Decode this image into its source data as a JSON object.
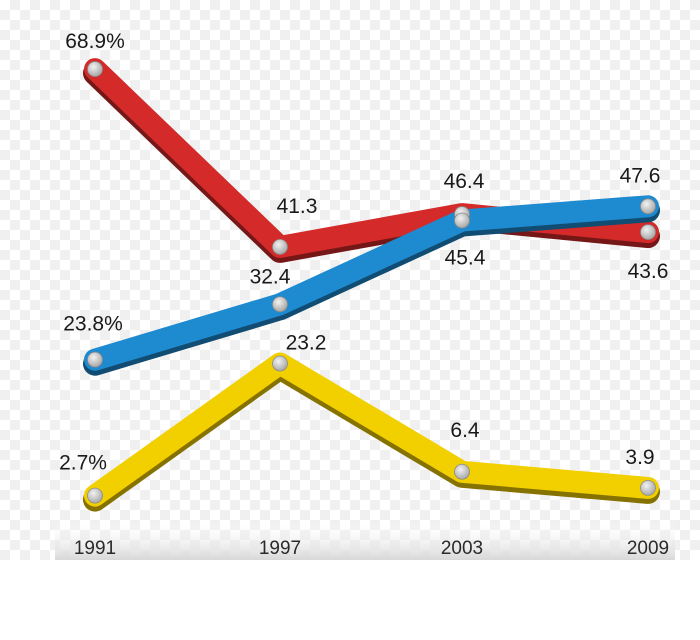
{
  "chart_data": {
    "type": "line",
    "categories": [
      "1991",
      "1997",
      "2003",
      "2009"
    ],
    "series": [
      {
        "name": "red",
        "color": "#d42a2a",
        "values": [
          68.9,
          41.3,
          46.4,
          43.6
        ],
        "labels": [
          "68.9%",
          "41.3",
          "46.4",
          "43.6"
        ]
      },
      {
        "name": "blue",
        "color": "#1e8ad0",
        "values": [
          23.8,
          32.4,
          45.4,
          47.6
        ],
        "labels": [
          "23.8%",
          "32.4",
          "45.4",
          "47.6"
        ]
      },
      {
        "name": "yellow",
        "color": "#f2d000",
        "values": [
          2.7,
          23.2,
          6.4,
          3.9
        ],
        "labels": [
          "2.7%",
          "23.2",
          "6.4",
          "3.9"
        ]
      }
    ],
    "title": "",
    "xlabel": "",
    "ylabel": "",
    "ylim": [
      0,
      70
    ]
  }
}
